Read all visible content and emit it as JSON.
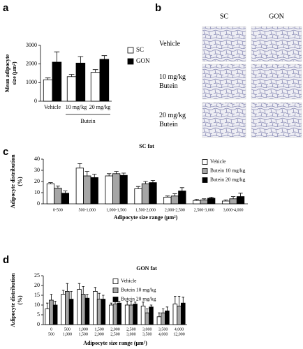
{
  "chart_data": [
    {
      "type": "bar",
      "panel_label": "a",
      "ylabel": [
        "Mean adipocyte",
        "size (μm²)"
      ],
      "categories": [
        "Vehicle",
        "10 mg/kg",
        "20 mg/kg"
      ],
      "group_label": "Butein",
      "series": [
        {
          "name": "SC",
          "color": "#ffffff",
          "values": [
            1150,
            1320,
            1550
          ],
          "errors": [
            100,
            120,
            150
          ]
        },
        {
          "name": "GON",
          "color": "#000000",
          "values": [
            2100,
            2050,
            2250
          ],
          "errors": [
            550,
            350,
            200
          ]
        }
      ],
      "ylim": [
        0,
        3000
      ],
      "yticks": [
        0,
        1000,
        2000,
        3000
      ]
    },
    {
      "type": "image",
      "panel_label": "b",
      "columns": [
        "SC",
        "GON"
      ],
      "rows": [
        [
          "Vehicle"
        ],
        [
          "10 mg/kg",
          "Butein"
        ],
        [
          "20 mg/kg",
          "Butein"
        ]
      ]
    },
    {
      "type": "bar",
      "panel_label": "c",
      "title": "SC fat",
      "ylabel": [
        "Adipocyte distribution",
        "(%)"
      ],
      "xlabel": "Adipocyte size range (μm²)",
      "categories": [
        "0-500",
        "500-1,000",
        "1,000-1,500",
        "1,500-2,000",
        "2,000-2,500",
        "2,500-3,000",
        "3,000-4,000"
      ],
      "series": [
        {
          "name": "Vehicle",
          "color": "#ffffff",
          "values": [
            18,
            32,
            25,
            13.5,
            6,
            3,
            2.5
          ],
          "errors": [
            1,
            4,
            2,
            2,
            1,
            1,
            1
          ]
        },
        {
          "name": "Butein 10 mg/kg",
          "color": "#a6a6a6",
          "values": [
            14,
            25,
            27,
            18,
            7,
            3.5,
            4.5
          ],
          "errors": [
            2,
            4,
            2,
            2,
            2,
            1,
            2
          ]
        },
        {
          "name": "Butein 20 mg/kg",
          "color": "#000000",
          "values": [
            9.5,
            23.5,
            25.5,
            19,
            11.5,
            5,
            6.5
          ],
          "errors": [
            2,
            3,
            2,
            2,
            3,
            1,
            3
          ]
        }
      ],
      "ylim": [
        0,
        40
      ],
      "yticks": [
        0,
        10,
        20,
        30,
        40
      ]
    },
    {
      "type": "bar",
      "panel_label": "d",
      "title": "GON fat",
      "ylabel": [
        "Adipocyte distribution",
        "(%)"
      ],
      "xlabel": "Adipocyte size range (μm²)",
      "categories": [
        [
          "0",
          "500"
        ],
        [
          "500",
          "1,000"
        ],
        [
          "1,000",
          "1,500"
        ],
        [
          "1,500",
          "2,000"
        ],
        [
          "2,000",
          "2,500"
        ],
        [
          "2,500",
          "3,000"
        ],
        [
          "3,000",
          "3,500"
        ],
        [
          "3,500",
          "4,000"
        ],
        [
          "4,000",
          "12,000"
        ]
      ],
      "series": [
        {
          "name": "Vehicle",
          "color": "#ffffff",
          "values": [
            8,
            15.5,
            18,
            17,
            10,
            10,
            9.5,
            4,
            10.5
          ],
          "errors": [
            3,
            2,
            3,
            2,
            1,
            2,
            2,
            2,
            4
          ]
        },
        {
          "name": "Butein 10 mg/kg",
          "color": "#a6a6a6",
          "values": [
            12.5,
            17,
            15.5,
            13,
            10.5,
            10,
            6,
            6,
            9.5
          ],
          "errors": [
            3,
            4,
            4,
            3,
            2,
            2,
            2,
            2,
            5
          ]
        },
        {
          "name": "Butein 20 mg/kg",
          "color": "#000000",
          "values": [
            10,
            13,
            13.5,
            13,
            11,
            10.5,
            9,
            7,
            11
          ],
          "errors": [
            2,
            4,
            2,
            2,
            1,
            1,
            1,
            2,
            3
          ]
        }
      ],
      "ylim": [
        0,
        25
      ],
      "yticks": [
        0,
        5,
        10,
        15,
        20,
        25
      ]
    }
  ]
}
